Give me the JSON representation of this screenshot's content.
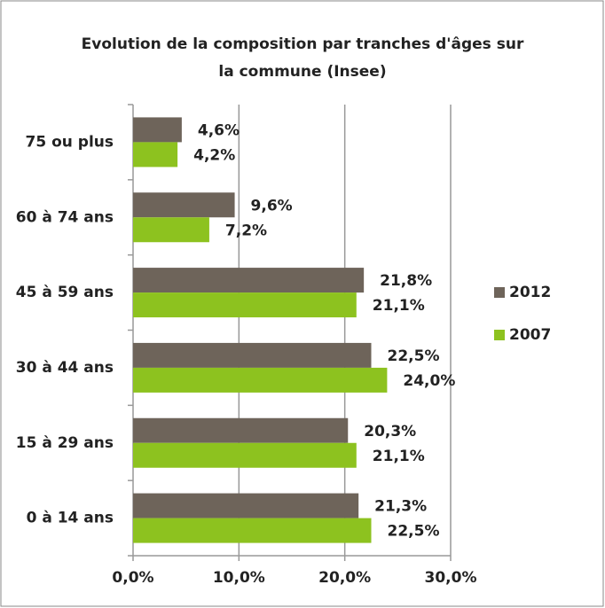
{
  "chart_data": {
    "type": "hbar",
    "title": [
      "Evolution de la composition par tranches d'âges sur",
      "la commune (Insee)"
    ],
    "categories": [
      "75 ou plus",
      "60 à 74 ans",
      "45 à 59 ans",
      "30 à 44 ans",
      "15 à 29 ans",
      "0 à 14 ans"
    ],
    "series": [
      {
        "name": "2012",
        "color": "#6e645a",
        "values": [
          4.6,
          9.6,
          21.8,
          22.5,
          20.3,
          21.3
        ],
        "value_labels": [
          "4,6%",
          "9,6%",
          "21,8%",
          "22,5%",
          "20,3%",
          "21,3%"
        ]
      },
      {
        "name": "2007",
        "color": "#8dc21f",
        "values": [
          4.2,
          7.2,
          21.1,
          24.0,
          21.1,
          22.5
        ],
        "value_labels": [
          "4,2%",
          "7,2%",
          "21,1%",
          "24,0%",
          "21,1%",
          "22,5%"
        ]
      }
    ],
    "xlim": [
      0,
      30
    ],
    "xticks": [
      {
        "value": 0,
        "label": "0,0%"
      },
      {
        "value": 10,
        "label": "10,0%"
      },
      {
        "value": 20,
        "label": "20,0%"
      },
      {
        "value": 30,
        "label": "30,0%"
      }
    ],
    "grid": true,
    "legend": "right"
  }
}
